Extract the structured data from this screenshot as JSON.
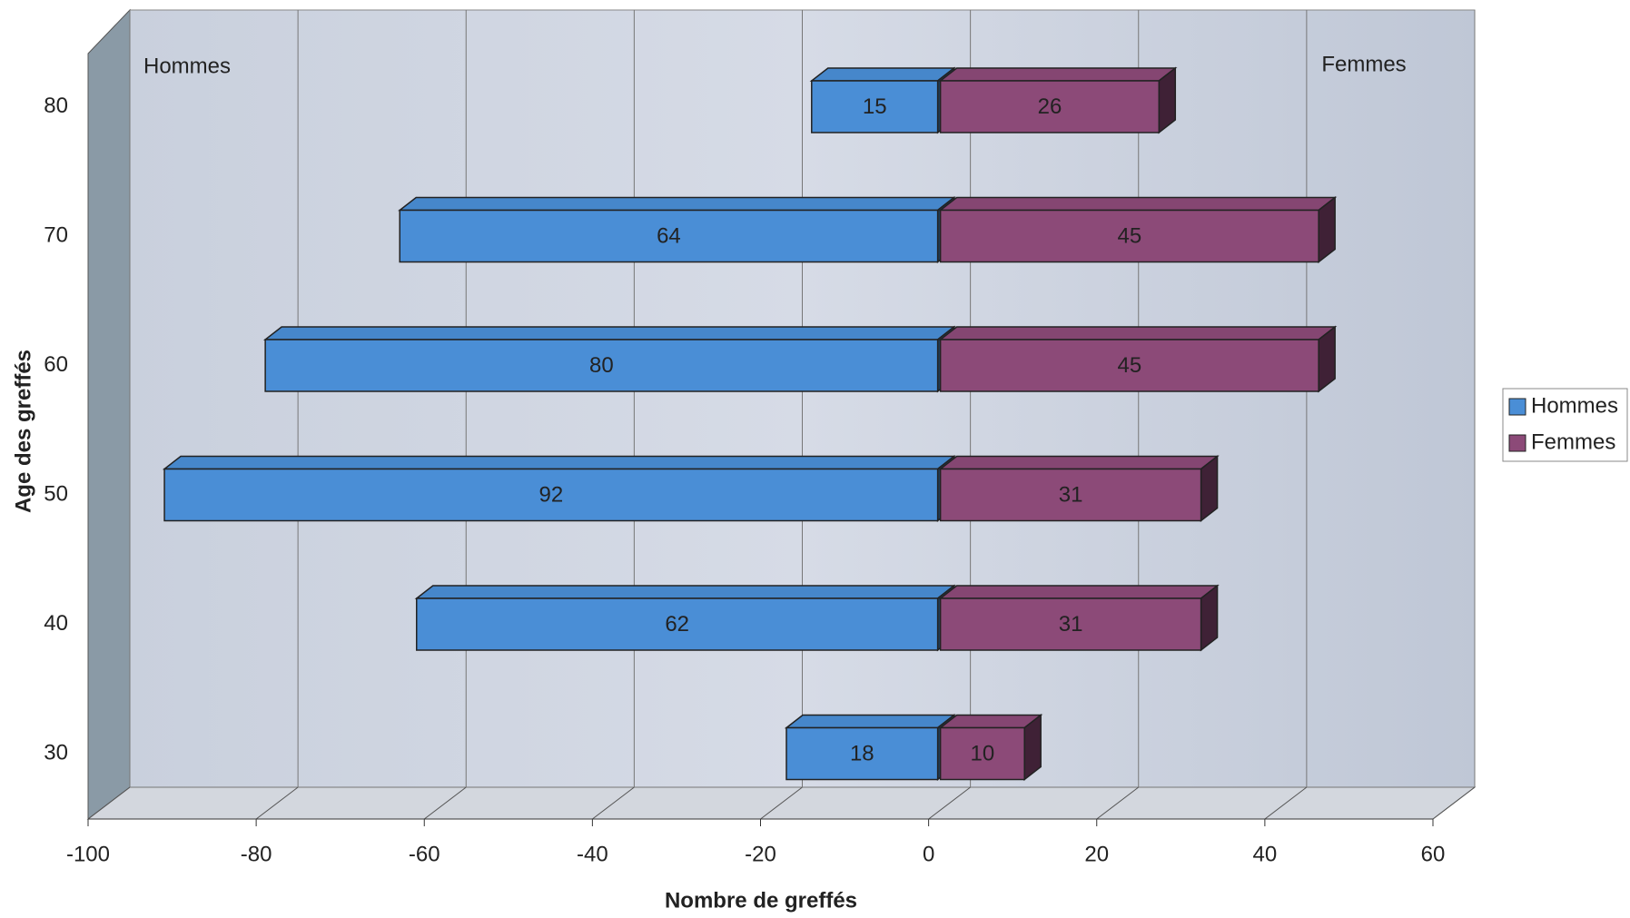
{
  "chart_data": {
    "type": "bar",
    "orientation": "horizontal",
    "x_label": "Nombre de greffés",
    "y_label": "Age des greffés",
    "annotations": [
      "Hommes",
      "Femmes"
    ],
    "categories": [
      30,
      40,
      50,
      60,
      70,
      80
    ],
    "series": [
      {
        "name": "Hommes",
        "color": "#4a8ed6",
        "values": [
          -18,
          -62,
          -92,
          -80,
          -64,
          -15
        ],
        "value_labels": [
          "18",
          "62",
          "92",
          "80",
          "64",
          "15"
        ]
      },
      {
        "name": "Femmes",
        "color": "#8c4a78",
        "values": [
          10,
          31,
          31,
          45,
          45,
          26
        ]
      }
    ],
    "xlim": [
      -100,
      60
    ],
    "xticks": [
      -100,
      -80,
      -60,
      -40,
      -20,
      0,
      20,
      40,
      60
    ],
    "grid": true,
    "legend": "right"
  }
}
